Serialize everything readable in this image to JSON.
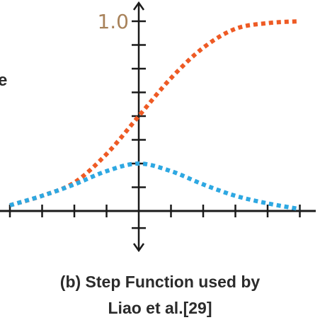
{
  "chart_data": {
    "type": "line",
    "title": "",
    "xlabel": "",
    "ylabel": "",
    "xlim": [
      -2.0,
      2.5
    ],
    "ylim": [
      -0.4,
      1.15
    ],
    "y_tick_labels": [
      {
        "value": 1.0,
        "label": "1.0"
      }
    ],
    "grid": false,
    "legend": "none",
    "series": [
      {
        "color": "#ee5a24",
        "style": "dotted",
        "x": [
          -2.0,
          -1.5,
          -1.0,
          -0.5,
          0.0,
          0.5,
          1.0,
          1.5,
          2.0,
          2.5
        ],
        "y": [
          0.03,
          0.08,
          0.15,
          0.3,
          0.5,
          0.7,
          0.86,
          0.96,
          0.99,
          1.0
        ]
      },
      {
        "color": "#2ea8e2",
        "style": "dotted",
        "x": [
          -2.0,
          -1.5,
          -1.0,
          -0.5,
          0.0,
          0.5,
          1.0,
          1.5,
          2.0,
          2.5
        ],
        "y": [
          0.03,
          0.08,
          0.14,
          0.21,
          0.25,
          0.21,
          0.14,
          0.08,
          0.04,
          0.01
        ]
      }
    ]
  },
  "caption": {
    "line1": "(b) Step Function used by",
    "line2": "Liao et al.[29]"
  },
  "clipped_text": "e",
  "colors": {
    "axis": "#1a1a1a",
    "orange": "#ee5a24",
    "blue": "#2ea8e2",
    "tick_label": "#a8825a"
  }
}
